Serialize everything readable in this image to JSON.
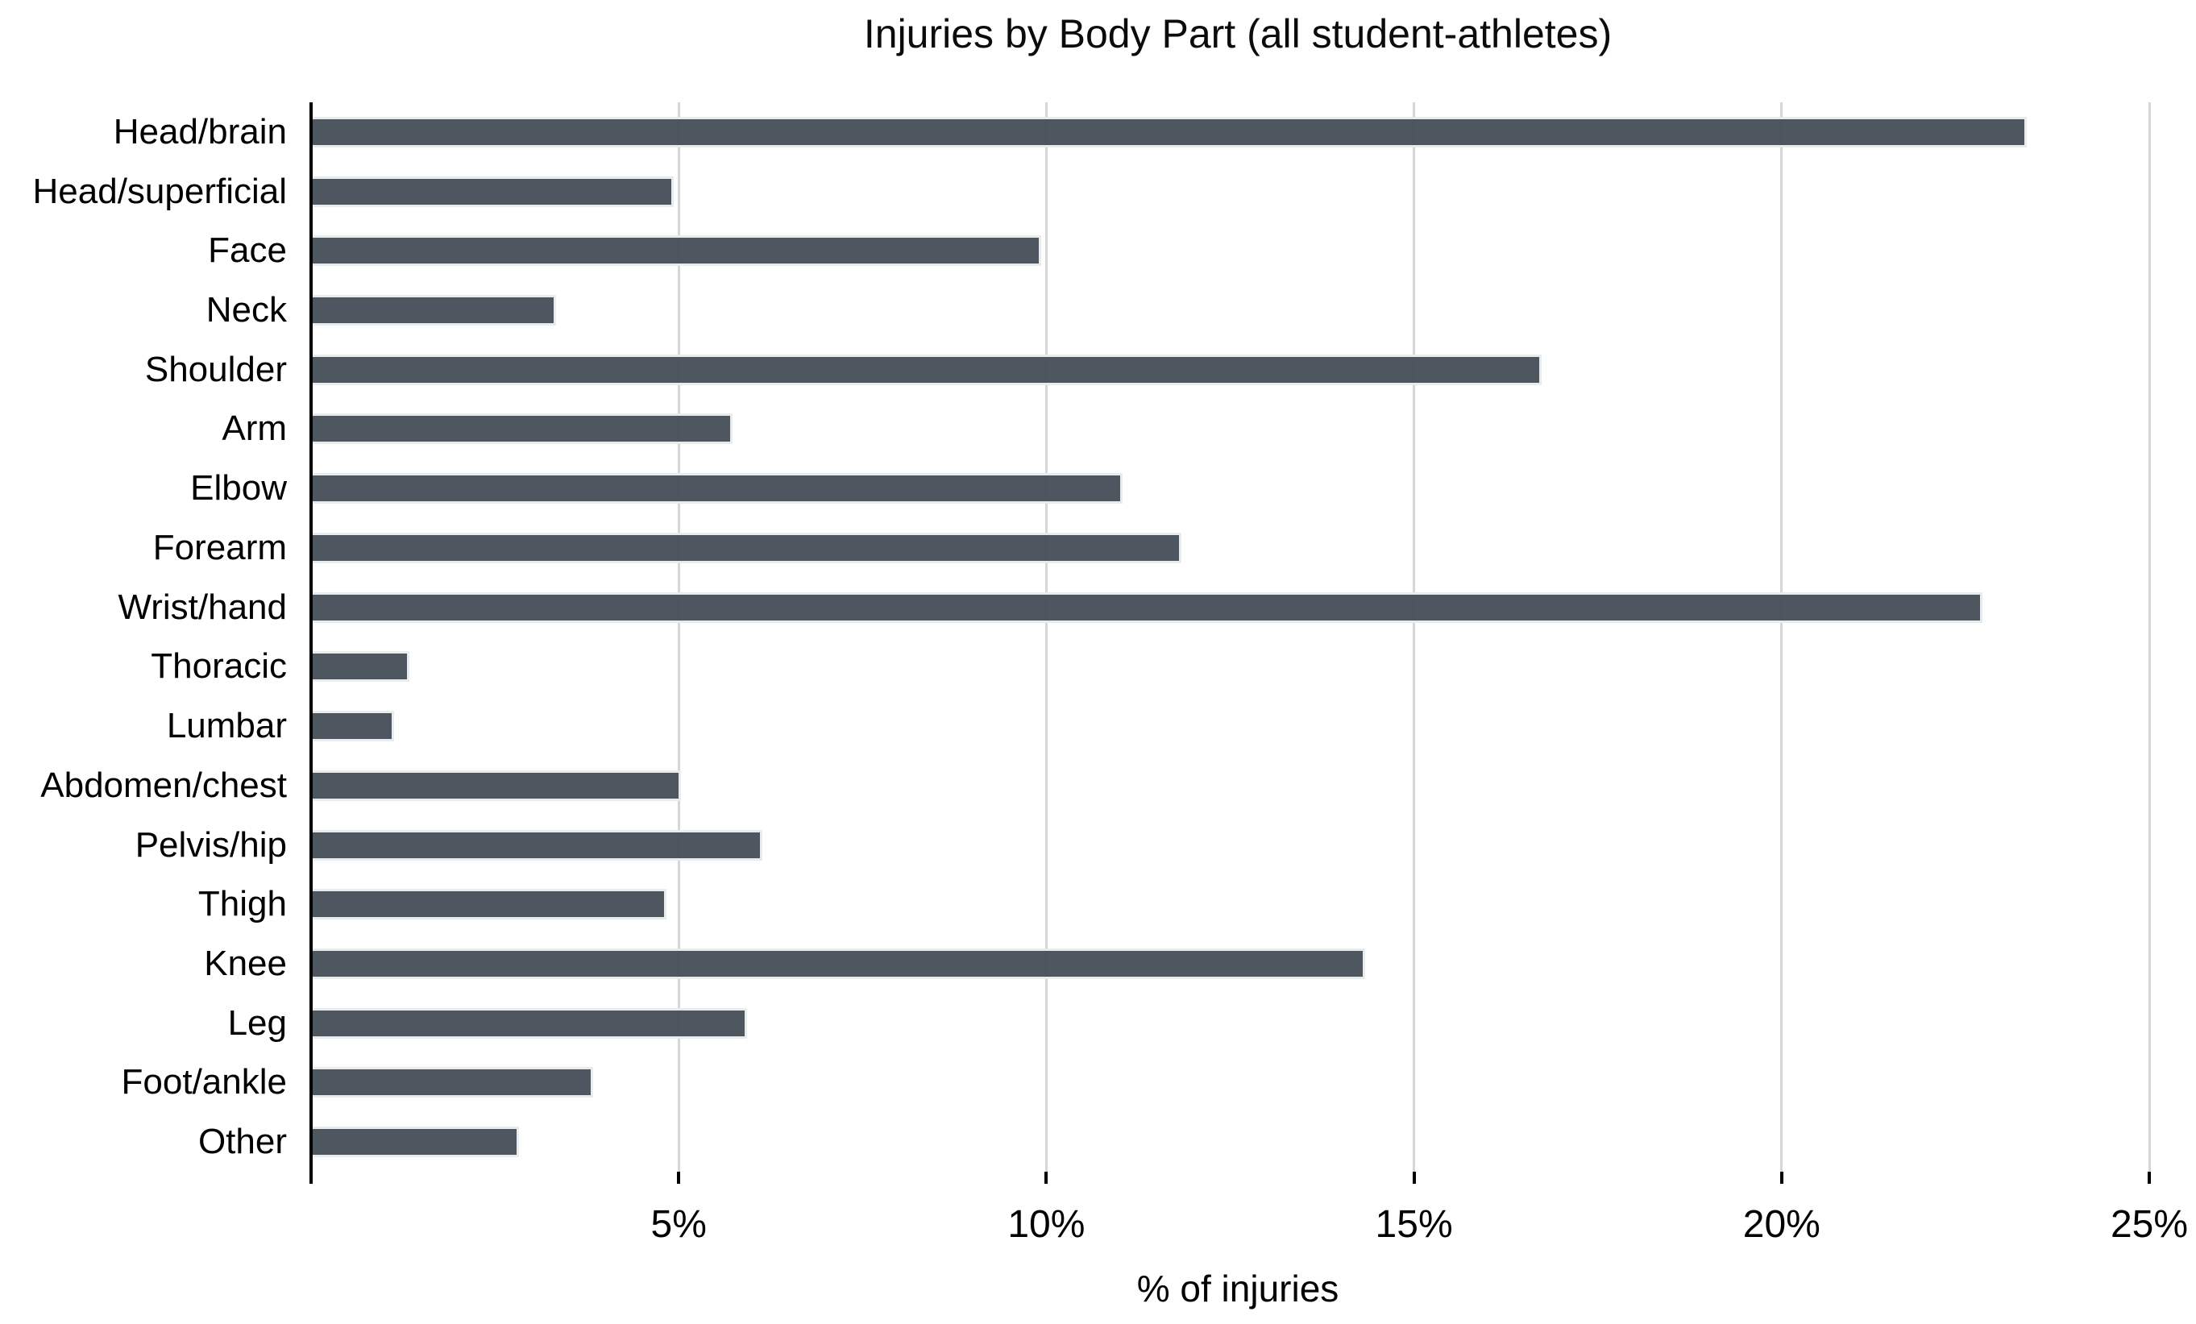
{
  "title": "Injuries by Body Part (all student-athletes)",
  "chart_data": {
    "type": "bar",
    "orientation": "horizontal",
    "title": "Injuries by Body Part (all student-athletes)",
    "xlabel": "% of injuries",
    "categories": [
      "Head/brain",
      "Head/superficial",
      "Face",
      "Neck",
      "Shoulder",
      "Arm",
      "Elbow",
      "Forearm",
      "Wrist/hand",
      "Thoracic",
      "Lumbar",
      "Abdomen/chest",
      "Pelvis/hip",
      "Thigh",
      "Knee",
      "Leg",
      "Foot/ankle",
      "Other"
    ],
    "values": [
      23.3,
      4.9,
      9.9,
      3.3,
      16.7,
      5.7,
      11.0,
      11.8,
      22.7,
      1.3,
      1.1,
      5.0,
      6.1,
      4.8,
      14.3,
      5.9,
      3.8,
      2.8
    ],
    "value_unit": "%",
    "xlim": [
      0,
      25
    ],
    "xticks": [
      {
        "value": 0,
        "label": ""
      },
      {
        "value": 5,
        "label": "5%"
      },
      {
        "value": 10,
        "label": "10%"
      },
      {
        "value": 15,
        "label": "15%"
      },
      {
        "value": 20,
        "label": "20%"
      },
      {
        "value": 25,
        "label": "25%"
      }
    ],
    "grid": "vertical-gridlines-only",
    "legend": "none",
    "colors": {
      "bar": "#4d575e",
      "bar_stroke": "#e9eced",
      "gridline": "#d4d6d8",
      "axis": "#000000",
      "text": "#000000",
      "background": "#ffffff"
    }
  }
}
